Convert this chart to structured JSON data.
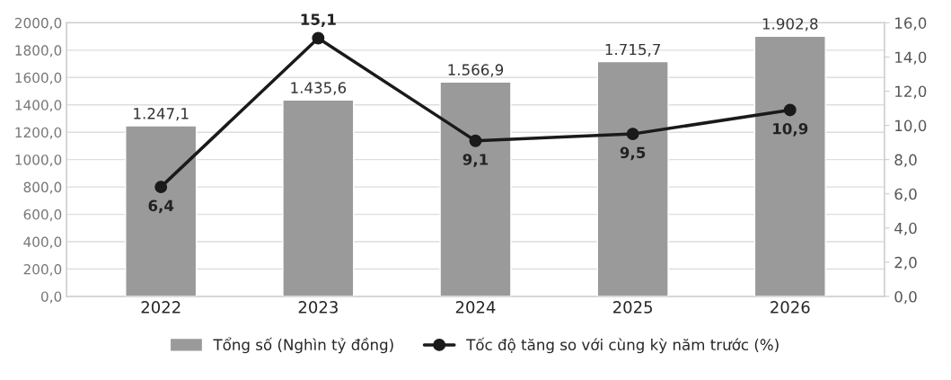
{
  "chart_data": {
    "type": "bar",
    "categories": [
      "2022",
      "2023",
      "2024",
      "2025",
      "2026"
    ],
    "series": [
      {
        "name": "Tổng số (Nghìn tỷ đồng)",
        "color": "#9a9a9a",
        "values": [
          1247.1,
          1435.6,
          1566.9,
          1715.7,
          1902.8
        ],
        "value_labels": [
          "1.247,1",
          "1.435,6",
          "1.566,9",
          "1.715,7",
          "1.902,8"
        ]
      },
      {
        "name": "Tốc độ tăng so với cùng kỳ năm trước (%)",
        "type": "line",
        "axis": "y2",
        "color": "#1a1a1a",
        "marker": "circle",
        "values": [
          6.4,
          15.1,
          9.1,
          9.5,
          10.9
        ],
        "value_labels": [
          "6,4",
          "15,1",
          "9,1",
          "9,5",
          "10,9"
        ]
      }
    ],
    "ylim": [
      0,
      2000
    ],
    "yticks": [
      {
        "value": 0,
        "label": "0,0"
      },
      {
        "value": 200,
        "label": "200,0"
      },
      {
        "value": 400,
        "label": "400,0"
      },
      {
        "value": 600,
        "label": "600,0"
      },
      {
        "value": 800,
        "label": "800,0"
      },
      {
        "value": 1000,
        "label": "1000,0"
      },
      {
        "value": 1200,
        "label": "1200,0"
      },
      {
        "value": 1400,
        "label": "1400,0"
      },
      {
        "value": 1600,
        "label": "1600,0"
      },
      {
        "value": 1800,
        "label": "1800,0"
      },
      {
        "value": 2000,
        "label": "2000,0"
      }
    ],
    "y2lim": [
      0,
      16
    ],
    "y2ticks": [
      {
        "value": 0,
        "label": "0,0"
      },
      {
        "value": 2,
        "label": "2,0"
      },
      {
        "value": 4,
        "label": "4,0"
      },
      {
        "value": 6,
        "label": "6,0"
      },
      {
        "value": 8,
        "label": "8,0"
      },
      {
        "value": 10,
        "label": "10,0"
      },
      {
        "value": 12,
        "label": "12,0"
      },
      {
        "value": 14,
        "label": "14,0"
      },
      {
        "value": 16,
        "label": "16,0"
      }
    ],
    "grid": "y",
    "legend": "bottom"
  }
}
